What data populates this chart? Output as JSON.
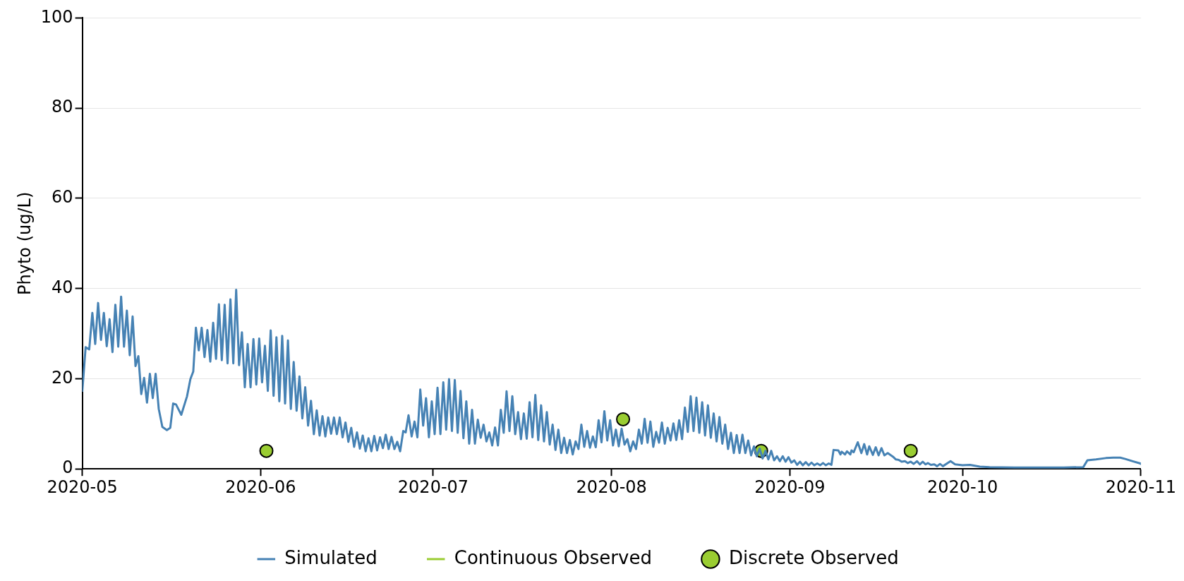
{
  "chart_data": {
    "type": "line",
    "ylabel": "Phyto (ug/L)",
    "xlim": [
      "2020-05-01",
      "2020-11-01"
    ],
    "xticks": [
      "2020-05",
      "2020-06",
      "2020-07",
      "2020-08",
      "2020-09",
      "2020-10",
      "2020-11"
    ],
    "ylim": [
      0,
      100
    ],
    "yticks": [
      0,
      20,
      40,
      60,
      80,
      100
    ],
    "grid": "y",
    "legend": "bottom",
    "series": [
      {
        "name": "Simulated",
        "color": "#4682b4",
        "line_style": "solid",
        "x": [
          "2020-05-01T00:00",
          "2020-05-01T14:00",
          "2020-05-02T05:00",
          "2020-05-02T18:00",
          "2020-05-03T06:00",
          "2020-05-03T18:00",
          "2020-05-04T06:00",
          "2020-05-04T18:00",
          "2020-05-05T06:00",
          "2020-05-05T18:00",
          "2020-05-06T06:00",
          "2020-05-06T18:00",
          "2020-05-07T06:00",
          "2020-05-07T18:00",
          "2020-05-08T06:00",
          "2020-05-08T18:00",
          "2020-05-09T06:00",
          "2020-05-09T18:00",
          "2020-05-10T06:00",
          "2020-05-10T18:00",
          "2020-05-11T06:00",
          "2020-05-11T18:00",
          "2020-05-12T06:00",
          "2020-05-12T18:00",
          "2020-05-13T06:00",
          "2020-05-13T18:00",
          "2020-05-14T07:00",
          "2020-05-14T22:00",
          "2020-05-15T17:00",
          "2020-05-16T07:00",
          "2020-05-16T19:00",
          "2020-05-17T07:00",
          "2020-05-18T05:00",
          "2020-05-19T05:00",
          "2020-05-19T19:00",
          "2020-05-20T07:00",
          "2020-05-20T18:00",
          "2020-05-21T06:00",
          "2020-05-21T18:00",
          "2020-05-22T06:00",
          "2020-05-22T18:00",
          "2020-05-23T06:00",
          "2020-05-23T18:00",
          "2020-05-24T06:00",
          "2020-05-24T18:00",
          "2020-05-25T06:00",
          "2020-05-25T18:00",
          "2020-05-26T06:00",
          "2020-05-26T18:00",
          "2020-05-27T06:00",
          "2020-05-27T18:00",
          "2020-05-28T06:00",
          "2020-05-28T18:00",
          "2020-05-29T06:00",
          "2020-05-29T18:00",
          "2020-05-30T06:00",
          "2020-05-30T18:00",
          "2020-05-31T06:00",
          "2020-05-31T18:00",
          "2020-06-01T06:00",
          "2020-06-01T18:00",
          "2020-06-02T06:00",
          "2020-06-02T18:00",
          "2020-06-03T06:00",
          "2020-06-03T18:00",
          "2020-06-04T06:00",
          "2020-06-04T18:00",
          "2020-06-05T06:00",
          "2020-06-05T18:00",
          "2020-06-06T06:00",
          "2020-06-06T18:00",
          "2020-06-07T06:00",
          "2020-06-07T18:00",
          "2020-06-08T06:00",
          "2020-06-08T18:00",
          "2020-06-09T06:00",
          "2020-06-09T18:00",
          "2020-06-10T06:00",
          "2020-06-10T18:00",
          "2020-06-11T06:00",
          "2020-06-11T18:00",
          "2020-06-12T06:00",
          "2020-06-12T18:00",
          "2020-06-13T06:00",
          "2020-06-13T18:00",
          "2020-06-14T06:00",
          "2020-06-14T18:00",
          "2020-06-15T06:00",
          "2020-06-15T18:00",
          "2020-06-16T06:00",
          "2020-06-16T18:00",
          "2020-06-17T06:00",
          "2020-06-17T18:00",
          "2020-06-18T06:00",
          "2020-06-18T18:00",
          "2020-06-19T06:00",
          "2020-06-19T18:00",
          "2020-06-20T06:00",
          "2020-06-20T18:00",
          "2020-06-21T06:00",
          "2020-06-21T18:00",
          "2020-06-22T06:00",
          "2020-06-22T18:00",
          "2020-06-23T06:00",
          "2020-06-23T18:00",
          "2020-06-24T06:00",
          "2020-06-24T18:00",
          "2020-06-25T06:00",
          "2020-06-25T19:00",
          "2020-06-26T05:00",
          "2020-06-26T17:00",
          "2020-06-27T06:00",
          "2020-06-27T18:00",
          "2020-06-28T06:00",
          "2020-06-28T18:00",
          "2020-06-29T06:00",
          "2020-06-29T18:00",
          "2020-06-30T06:00",
          "2020-06-30T18:00",
          "2020-07-01T06:00",
          "2020-07-01T18:00",
          "2020-07-02T06:00",
          "2020-07-02T18:00",
          "2020-07-03T06:00",
          "2020-07-03T18:00",
          "2020-07-04T06:00",
          "2020-07-04T18:00",
          "2020-07-05T06:00",
          "2020-07-05T18:00",
          "2020-07-06T06:00",
          "2020-07-06T18:00",
          "2020-07-07T06:00",
          "2020-07-07T18:00",
          "2020-07-08T06:00",
          "2020-07-08T18:00",
          "2020-07-09T06:00",
          "2020-07-09T18:00",
          "2020-07-10T06:00",
          "2020-07-10T18:00",
          "2020-07-11T06:00",
          "2020-07-11T18:00",
          "2020-07-12T06:00",
          "2020-07-12T18:00",
          "2020-07-13T06:00",
          "2020-07-13T18:00",
          "2020-07-14T06:00",
          "2020-07-14T18:00",
          "2020-07-15T06:00",
          "2020-07-15T18:00",
          "2020-07-16T06:00",
          "2020-07-16T18:00",
          "2020-07-17T06:00",
          "2020-07-17T18:00",
          "2020-07-18T06:00",
          "2020-07-18T18:00",
          "2020-07-19T06:00",
          "2020-07-19T18:00",
          "2020-07-20T06:00",
          "2020-07-20T18:00",
          "2020-07-21T06:00",
          "2020-07-21T18:00",
          "2020-07-22T06:00",
          "2020-07-22T18:00",
          "2020-07-23T06:00",
          "2020-07-23T18:00",
          "2020-07-24T06:00",
          "2020-07-24T18:00",
          "2020-07-25T06:00",
          "2020-07-25T18:00",
          "2020-07-26T06:00",
          "2020-07-26T18:00",
          "2020-07-27T06:00",
          "2020-07-27T18:00",
          "2020-07-28T06:00",
          "2020-07-28T18:00",
          "2020-07-29T06:00",
          "2020-07-29T18:00",
          "2020-07-30T06:00",
          "2020-07-30T18:00",
          "2020-07-31T06:00",
          "2020-07-31T18:00",
          "2020-08-01T06:00",
          "2020-08-01T18:00",
          "2020-08-02T06:00",
          "2020-08-02T18:00",
          "2020-08-03T06:00",
          "2020-08-03T18:00",
          "2020-08-04T06:00",
          "2020-08-04T18:00",
          "2020-08-05T06:00",
          "2020-08-05T18:00",
          "2020-08-06T06:00",
          "2020-08-06T18:00",
          "2020-08-07T06:00",
          "2020-08-07T18:00",
          "2020-08-08T06:00",
          "2020-08-08T18:00",
          "2020-08-09T06:00",
          "2020-08-09T18:00",
          "2020-08-10T06:00",
          "2020-08-10T18:00",
          "2020-08-11T06:00",
          "2020-08-11T18:00",
          "2020-08-12T06:00",
          "2020-08-12T18:00",
          "2020-08-13T06:00",
          "2020-08-13T18:00",
          "2020-08-14T06:00",
          "2020-08-14T18:00",
          "2020-08-15T06:00",
          "2020-08-15T18:00",
          "2020-08-16T06:00",
          "2020-08-16T18:00",
          "2020-08-17T06:00",
          "2020-08-17T18:00",
          "2020-08-18T06:00",
          "2020-08-18T18:00",
          "2020-08-19T06:00",
          "2020-08-19T18:00",
          "2020-08-20T06:00",
          "2020-08-20T18:00",
          "2020-08-21T06:00",
          "2020-08-21T18:00",
          "2020-08-22T06:00",
          "2020-08-22T18:00",
          "2020-08-23T06:00",
          "2020-08-23T18:00",
          "2020-08-24T06:00",
          "2020-08-24T18:00",
          "2020-08-25T06:00",
          "2020-08-25T18:00",
          "2020-08-26T06:00",
          "2020-08-26T18:00",
          "2020-08-27T06:00",
          "2020-08-27T18:00",
          "2020-08-28T06:00",
          "2020-08-28T18:00",
          "2020-08-29T06:00",
          "2020-08-29T18:00",
          "2020-08-30T06:00",
          "2020-08-30T18:00",
          "2020-08-31T06:00",
          "2020-08-31T18:00",
          "2020-09-01T06:00",
          "2020-09-01T18:00",
          "2020-09-02T06:00",
          "2020-09-02T18:00",
          "2020-09-03T06:00",
          "2020-09-03T18:00",
          "2020-09-04T06:00",
          "2020-09-04T18:00",
          "2020-09-05T06:00",
          "2020-09-05T18:00",
          "2020-09-06T06:00",
          "2020-09-06T18:00",
          "2020-09-07T06:00",
          "2020-09-07T18:00",
          "2020-09-08T05:00",
          "2020-09-08T14:00",
          "2020-09-09T10:00",
          "2020-09-09T19:00",
          "2020-09-10T00:00",
          "2020-09-10T14:00",
          "2020-09-10T22:00",
          "2020-09-11T12:00",
          "2020-09-11T17:00",
          "2020-09-12T02:00",
          "2020-09-12T19:00",
          "2020-09-13T10:00",
          "2020-09-13T22:00",
          "2020-09-14T10:00",
          "2020-09-14T19:00",
          "2020-09-15T10:00",
          "2020-09-15T22:00",
          "2020-09-16T10:00",
          "2020-09-16T22:00",
          "2020-09-17T10:00",
          "2020-09-18T00:00",
          "2020-09-18T22:00",
          "2020-09-19T10:00",
          "2020-09-19T22:00",
          "2020-09-20T10:00",
          "2020-09-21T00:00",
          "2020-09-21T12:00",
          "2020-09-22T00:00",
          "2020-09-22T12:00",
          "2020-09-23T02:00",
          "2020-09-23T14:00",
          "2020-09-24T02:00",
          "2020-09-24T14:00",
          "2020-09-25T00:00",
          "2020-09-25T12:00",
          "2020-09-26T02:00",
          "2020-09-26T14:00",
          "2020-09-27T02:00",
          "2020-09-27T14:00",
          "2020-09-28T22:00",
          "2020-09-29T17:00",
          "2020-10-01T00:00",
          "2020-10-02T07:00",
          "2020-10-04T00:00",
          "2020-10-05T17:00",
          "2020-10-10T00:00",
          "2020-10-18T14:00",
          "2020-10-22T00:00",
          "2020-10-22T17:00",
          "2020-10-24T05:00",
          "2020-10-25T22:00",
          "2020-10-27T05:00",
          "2020-10-28T10:00",
          "2020-10-29T07:00",
          "2020-10-30T14:00",
          "2020-10-31T22:00",
          "2020-11-01T00:00"
        ],
        "values": [
          17.1,
          27.0,
          26.5,
          34.6,
          27.7,
          36.8,
          28.6,
          34.6,
          27.2,
          33.2,
          25.9,
          36.4,
          27.1,
          38.2,
          27.1,
          35.1,
          25.2,
          33.8,
          22.8,
          25.0,
          16.6,
          20.2,
          14.7,
          21.1,
          15.7,
          21.1,
          13.3,
          9.3,
          8.6,
          9.1,
          14.5,
          14.3,
          12.0,
          16.1,
          19.9,
          21.6,
          31.3,
          26.3,
          31.3,
          24.8,
          30.8,
          23.8,
          32.4,
          24.4,
          36.5,
          24.1,
          36.4,
          23.4,
          37.6,
          23.4,
          39.7,
          23.0,
          30.3,
          18.1,
          27.7,
          18.1,
          28.8,
          18.7,
          28.9,
          19.2,
          27.3,
          17.3,
          30.7,
          16.2,
          29.2,
          15.0,
          29.5,
          14.5,
          28.5,
          13.3,
          23.7,
          12.9,
          20.5,
          11.2,
          18.1,
          9.6,
          15.1,
          7.7,
          13.0,
          7.4,
          11.7,
          7.2,
          11.4,
          7.8,
          11.4,
          7.7,
          11.4,
          7.0,
          10.3,
          6.0,
          9.1,
          4.9,
          8.1,
          4.5,
          7.4,
          3.9,
          6.8,
          3.9,
          7.3,
          4.1,
          7.0,
          4.6,
          7.6,
          4.4,
          7.1,
          4.4,
          6.0,
          3.9,
          8.4,
          8.1,
          11.9,
          7.2,
          10.5,
          7.0,
          17.6,
          9.6,
          15.7,
          7.0,
          15.0,
          7.7,
          18.0,
          7.7,
          19.2,
          8.7,
          19.9,
          8.4,
          19.7,
          8.0,
          17.3,
          6.8,
          15.0,
          5.6,
          13.1,
          5.6,
          10.9,
          6.9,
          9.8,
          6.1,
          8.1,
          5.2,
          9.2,
          5.2,
          13.1,
          8.0,
          17.2,
          8.4,
          16.1,
          7.7,
          12.6,
          6.6,
          12.3,
          6.7,
          14.8,
          7.0,
          16.4,
          6.4,
          14.1,
          6.1,
          12.6,
          5.4,
          9.8,
          4.2,
          8.7,
          3.5,
          6.9,
          3.5,
          6.4,
          3.2,
          6.1,
          4.4,
          9.8,
          4.9,
          8.4,
          4.7,
          7.2,
          4.8,
          10.8,
          5.9,
          12.8,
          6.3,
          10.8,
          5.2,
          8.7,
          5.0,
          8.9,
          5.4,
          6.6,
          3.9,
          6.1,
          4.4,
          8.7,
          5.6,
          11.1,
          5.8,
          10.5,
          4.9,
          8.2,
          5.8,
          10.3,
          5.6,
          9.1,
          6.3,
          10.1,
          6.4,
          10.8,
          6.6,
          13.6,
          8.2,
          16.1,
          8.4,
          15.8,
          8.0,
          14.8,
          7.4,
          14.1,
          6.9,
          12.3,
          6.1,
          11.5,
          5.6,
          9.8,
          4.4,
          8.0,
          3.5,
          7.5,
          3.5,
          7.6,
          3.5,
          6.3,
          3.0,
          5.0,
          2.8,
          4.5,
          2.3,
          4.0,
          2.1,
          4.0,
          1.9,
          2.8,
          1.7,
          2.8,
          1.6,
          2.6,
          1.4,
          1.9,
          0.9,
          1.6,
          0.8,
          1.5,
          0.8,
          1.4,
          0.8,
          1.2,
          0.8,
          1.3,
          0.8,
          1.2,
          0.9,
          4.2,
          4.1,
          3.2,
          3.8,
          3.2,
          3.9,
          3.2,
          4.1,
          3.7,
          5.9,
          3.5,
          5.5,
          3.2,
          5.0,
          3.1,
          4.8,
          3.0,
          4.6,
          3.0,
          3.5,
          2.7,
          2.1,
          2.0,
          1.6,
          1.7,
          1.3,
          1.6,
          1.1,
          1.7,
          1.0,
          1.6,
          1.0,
          1.3,
          0.9,
          1.0,
          0.6,
          1.1,
          0.6,
          1.7,
          1.0,
          0.8,
          0.9,
          0.5,
          0.4,
          0.3,
          0.3,
          0.4,
          1.9,
          2.1,
          2.4,
          2.5,
          2.5,
          2.2,
          1.7,
          1.2,
          1.1
        ]
      },
      {
        "name": "Continuous Observed",
        "color": "#9acd32"
      },
      {
        "name": "Discrete Observed",
        "type": "scatter",
        "color": "#9acd32",
        "marker": "circle",
        "x": [
          "2020-06-02",
          "2020-08-03",
          "2020-08-27",
          "2020-09-22"
        ],
        "values": [
          4,
          11,
          4,
          4
        ]
      }
    ]
  }
}
